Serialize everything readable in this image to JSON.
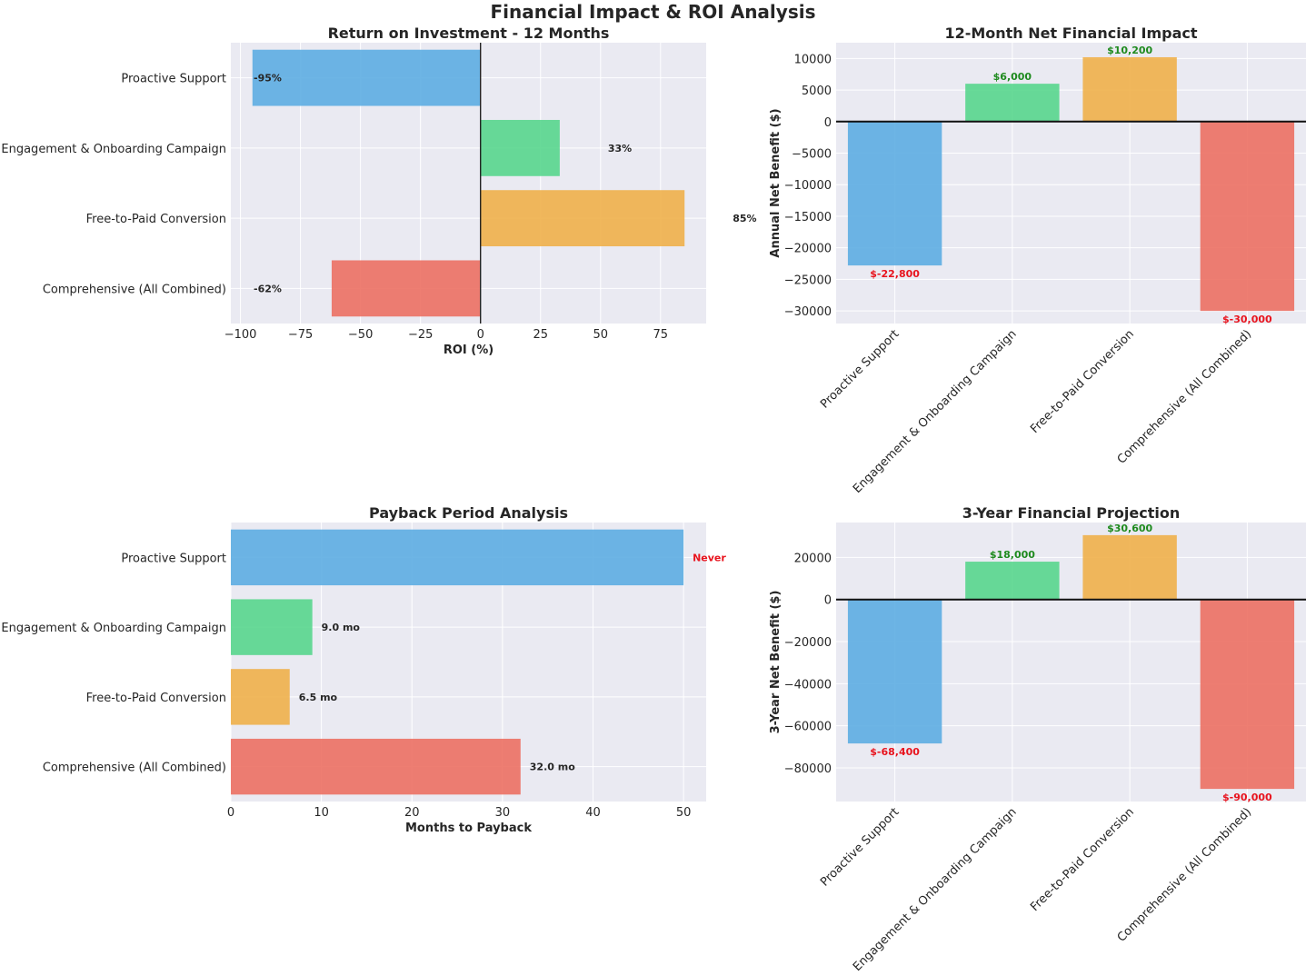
{
  "figure": {
    "title": "Financial Impact & ROI Analysis"
  },
  "colors": {
    "blue": "#5dade2",
    "green": "#58d68d",
    "orange": "#f0b04a",
    "red": "#ec7063",
    "plot_bg": "#eaeaf2",
    "grid": "#ffffff",
    "text": "#262626",
    "pos_label": "#1e8a1e",
    "neg_label": "#e8141e"
  },
  "chart_data": [
    {
      "id": "roi",
      "type": "bar",
      "orientation": "horizontal",
      "title": "Return on Investment - 12 Months",
      "xlabel": "ROI (%)",
      "ylabel": "",
      "categories": [
        "Proactive Support",
        "Engagement & Onboarding Campaign",
        "Free-to-Paid Conversion",
        "Comprehensive (All Combined)"
      ],
      "values": [
        -95,
        33,
        85,
        -62
      ],
      "value_labels": [
        "-95%",
        "33%",
        "85%",
        "-62%"
      ],
      "xlim": [
        -104,
        94
      ],
      "ticks": [
        -100,
        -75,
        -50,
        -25,
        0,
        25,
        50,
        75
      ],
      "tick_labels": [
        "−100",
        "−75",
        "−50",
        "−25",
        "0",
        "25",
        "50",
        "75"
      ],
      "zero_line": true,
      "grid": true
    },
    {
      "id": "net12",
      "type": "bar",
      "orientation": "vertical",
      "title": "12-Month Net Financial Impact",
      "xlabel": "",
      "ylabel": "Annual Net Benefit ($)",
      "categories": [
        "Proactive Support",
        "Engagement & Onboarding Campaign",
        "Free-to-Paid Conversion",
        "Comprehensive (All Combined)"
      ],
      "values": [
        -22800,
        6000,
        10200,
        -30000
      ],
      "value_labels": [
        "$-22,800",
        "$6,000",
        "$10,200",
        "$-30,000"
      ],
      "ylim": [
        -32000,
        12500
      ],
      "ticks": [
        -30000,
        -25000,
        -20000,
        -15000,
        -10000,
        -5000,
        0,
        5000,
        10000
      ],
      "tick_labels": [
        "−30000",
        "−25000",
        "−20000",
        "−15000",
        "−10000",
        "−5000",
        "0",
        "5000",
        "10000"
      ],
      "zero_line": true,
      "grid": true
    },
    {
      "id": "payback",
      "type": "bar",
      "orientation": "horizontal",
      "title": "Payback Period Analysis",
      "xlabel": "Months to Payback",
      "ylabel": "",
      "categories": [
        "Proactive Support",
        "Engagement & Onboarding Campaign",
        "Free-to-Paid Conversion",
        "Comprehensive (All Combined)"
      ],
      "values": [
        50,
        9.0,
        6.5,
        32.0
      ],
      "value_labels": [
        "Never",
        "9.0 mo",
        "6.5 mo",
        "32.0 mo"
      ],
      "xlim": [
        0,
        52.5
      ],
      "ticks": [
        0,
        10,
        20,
        30,
        40,
        50
      ],
      "tick_labels": [
        "0",
        "10",
        "20",
        "30",
        "40",
        "50"
      ],
      "zero_line": false,
      "grid": true
    },
    {
      "id": "net36",
      "type": "bar",
      "orientation": "vertical",
      "title": "3-Year Financial Projection",
      "xlabel": "",
      "ylabel": "3-Year Net Benefit ($)",
      "categories": [
        "Proactive Support",
        "Engagement & Onboarding Campaign",
        "Free-to-Paid Conversion",
        "Comprehensive (All Combined)"
      ],
      "values": [
        -68400,
        18000,
        30600,
        -90000
      ],
      "value_labels": [
        "$-68,400",
        "$18,000",
        "$30,600",
        "$-90,000"
      ],
      "ylim": [
        -96000,
        36600
      ],
      "ticks": [
        -80000,
        -60000,
        -40000,
        -20000,
        0,
        20000
      ],
      "tick_labels": [
        "−80000",
        "−60000",
        "−40000",
        "−20000",
        "0",
        "20000"
      ],
      "zero_line": true,
      "grid": true
    }
  ]
}
